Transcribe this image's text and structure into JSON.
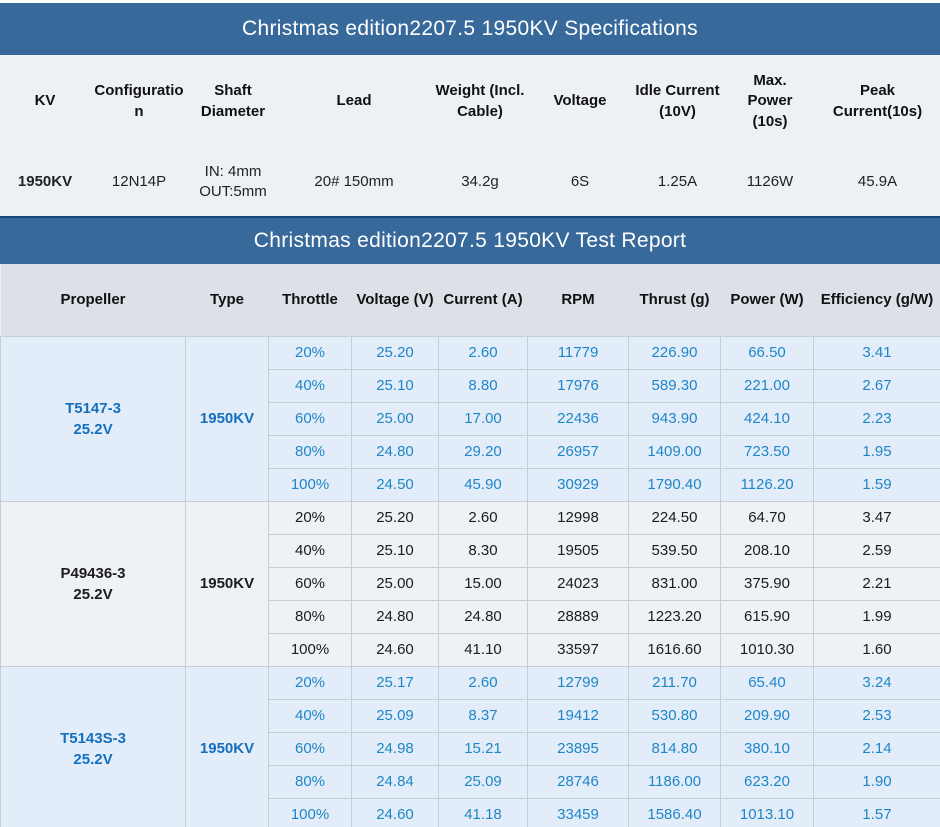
{
  "colors": {
    "title_bar_bg": "#38699b",
    "title_text": "#ffffff",
    "spec_section_bg": "#edf1f6",
    "report_header_bg": "#dbe1e7",
    "highlight_row_bg": "#e3edf9",
    "plain_row_bg": "#eef1f5",
    "blue_value_text": "#1e86c8",
    "blue_label_text": "#146fbe",
    "dark_text": "#1c1c1c",
    "cell_border": "#c7cdd4",
    "report_bar_top_border": "#1b4979"
  },
  "spec": {
    "title": "Christmas edition2207.5 1950KV Specifications",
    "columns": [
      "KV",
      "Configuration",
      "Shaft Diameter",
      "Lead",
      "Weight (Incl. Cable)",
      "Voltage",
      "Idle Current (10V)",
      "Max. Power (10s)",
      "Peak Current(10s)"
    ],
    "row": [
      "1950KV",
      "12N14P",
      "IN: 4mm\nOUT:5mm",
      "20# 150mm",
      "34.2g",
      "6S",
      "1.25A",
      "1126W",
      "45.9A"
    ]
  },
  "report": {
    "title": "Christmas edition2207.5 1950KV Test Report",
    "columns": [
      "Propeller",
      "Type",
      "Throttle",
      "Voltage (V)",
      "Current (A)",
      "RPM",
      "Thrust (g)",
      "Power (W)",
      "Efficiency (g/W)"
    ],
    "groups": [
      {
        "propeller": "T5147-3\n25.2V",
        "type": "1950KV",
        "highlighted": true,
        "rows": [
          [
            "20%",
            "25.20",
            "2.60",
            "11779",
            "226.90",
            "66.50",
            "3.41"
          ],
          [
            "40%",
            "25.10",
            "8.80",
            "17976",
            "589.30",
            "221.00",
            "2.67"
          ],
          [
            "60%",
            "25.00",
            "17.00",
            "22436",
            "943.90",
            "424.10",
            "2.23"
          ],
          [
            "80%",
            "24.80",
            "29.20",
            "26957",
            "1409.00",
            "723.50",
            "1.95"
          ],
          [
            "100%",
            "24.50",
            "45.90",
            "30929",
            "1790.40",
            "1126.20",
            "1.59"
          ]
        ]
      },
      {
        "propeller": "P49436-3\n25.2V",
        "type": "1950KV",
        "highlighted": false,
        "rows": [
          [
            "20%",
            "25.20",
            "2.60",
            "12998",
            "224.50",
            "64.70",
            "3.47"
          ],
          [
            "40%",
            "25.10",
            "8.30",
            "19505",
            "539.50",
            "208.10",
            "2.59"
          ],
          [
            "60%",
            "25.00",
            "15.00",
            "24023",
            "831.00",
            "375.90",
            "2.21"
          ],
          [
            "80%",
            "24.80",
            "24.80",
            "28889",
            "1223.20",
            "615.90",
            "1.99"
          ],
          [
            "100%",
            "24.60",
            "41.10",
            "33597",
            "1616.60",
            "1010.30",
            "1.60"
          ]
        ]
      },
      {
        "propeller": "T5143S-3\n25.2V",
        "type": "1950KV",
        "highlighted": true,
        "rows": [
          [
            "20%",
            "25.17",
            "2.60",
            "12799",
            "211.70",
            "65.40",
            "3.24"
          ],
          [
            "40%",
            "25.09",
            "8.37",
            "19412",
            "530.80",
            "209.90",
            "2.53"
          ],
          [
            "60%",
            "24.98",
            "15.21",
            "23895",
            "814.80",
            "380.10",
            "2.14"
          ],
          [
            "80%",
            "24.84",
            "25.09",
            "28746",
            "1186.00",
            "623.20",
            "1.90"
          ],
          [
            "100%",
            "24.60",
            "41.18",
            "33459",
            "1586.40",
            "1013.10",
            "1.57"
          ]
        ]
      }
    ]
  }
}
